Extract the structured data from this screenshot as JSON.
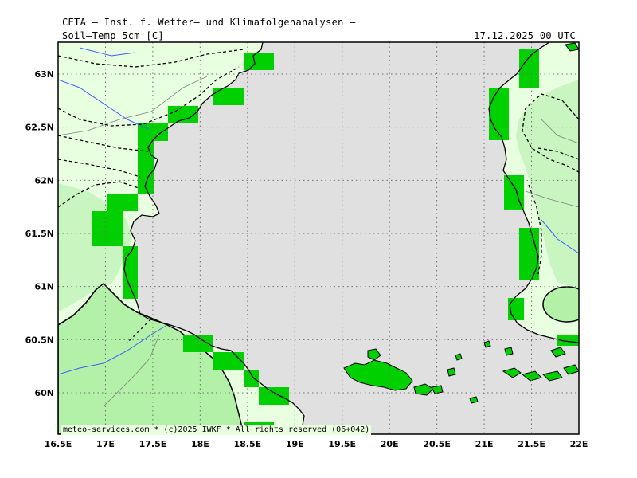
{
  "header": {
    "title": "CETA — Inst. f. Wetter— und Klimafolgenanalysen —",
    "subtitle": "Soil—Temp_5cm_[C]",
    "timestamp": "17.12.2025 00 UTC"
  },
  "map": {
    "lon_range": [
      16.5,
      22.0
    ],
    "lat_range": [
      59.75,
      63.25
    ],
    "lon_ticks": [
      "16.5E",
      "17E",
      "17.5E",
      "18E",
      "18.5E",
      "19E",
      "19.5E",
      "20E",
      "20.5E",
      "21E",
      "21.5E",
      "22E"
    ],
    "lat_ticks": [
      "63N",
      "62.5N",
      "62N",
      "61.5N",
      "61N",
      "60.5N",
      "60N"
    ],
    "colors": {
      "sea": "#e0e0e0",
      "very_light_green": "#e8ffe0",
      "light_green": "#c8f5c0",
      "medium_green": "#b3f0a8",
      "bright_green": "#00d000",
      "coast": "#000000",
      "rivers": "#4060ff",
      "borders": "#808080"
    },
    "gridlines": "dotted"
  },
  "footer": {
    "copyright": "meteo-services.com * (c)2025 IWKF * All rights reserved (06+042)"
  }
}
